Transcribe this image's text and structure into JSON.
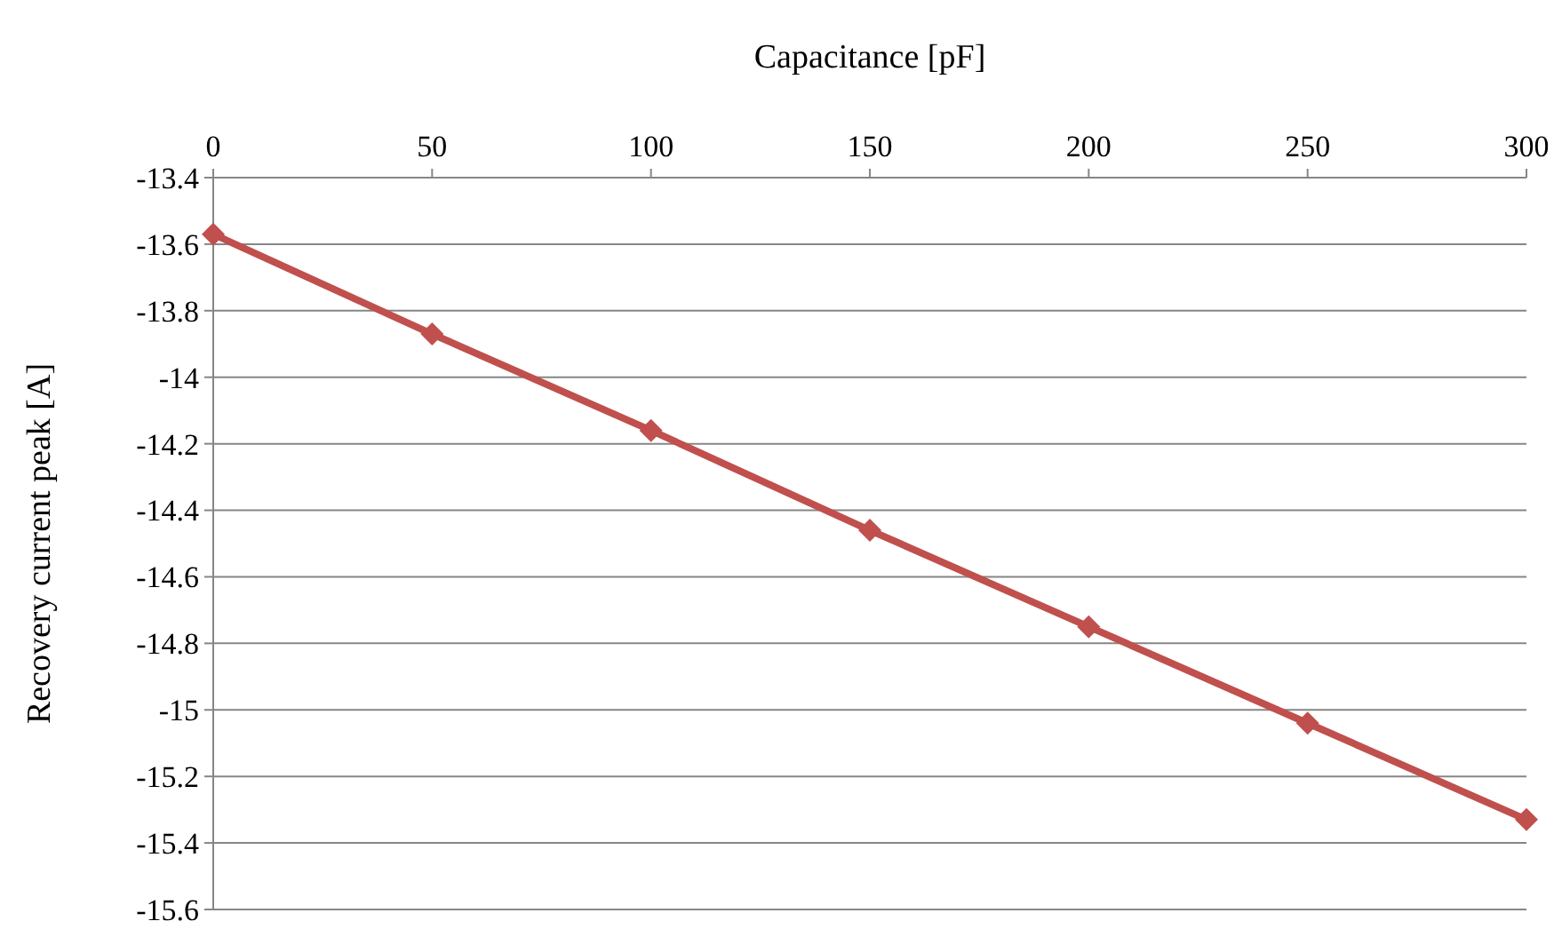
{
  "chart_data": {
    "type": "line",
    "xlabel": "Capacitance [pF]",
    "ylabel": "Recovery current peak [A]",
    "x": [
      0,
      50,
      100,
      150,
      200,
      250,
      300
    ],
    "series": [
      {
        "color": "#c0504d",
        "values": [
          -13.57,
          -13.87,
          -14.16,
          -14.46,
          -14.75,
          -15.04,
          -15.33
        ]
      }
    ],
    "xlim": [
      0,
      300
    ],
    "xticks": [
      0,
      50,
      100,
      150,
      200,
      250,
      300
    ],
    "ylim": [
      -15.6,
      -13.4
    ],
    "yticks": [
      -15.6,
      -15.4,
      -15.2,
      -15,
      -14.8,
      -14.6,
      -14.4,
      -14.2,
      -14,
      -13.8,
      -13.6,
      -13.4
    ],
    "grid": "y",
    "marker": "diamond",
    "line_style": "solid"
  }
}
